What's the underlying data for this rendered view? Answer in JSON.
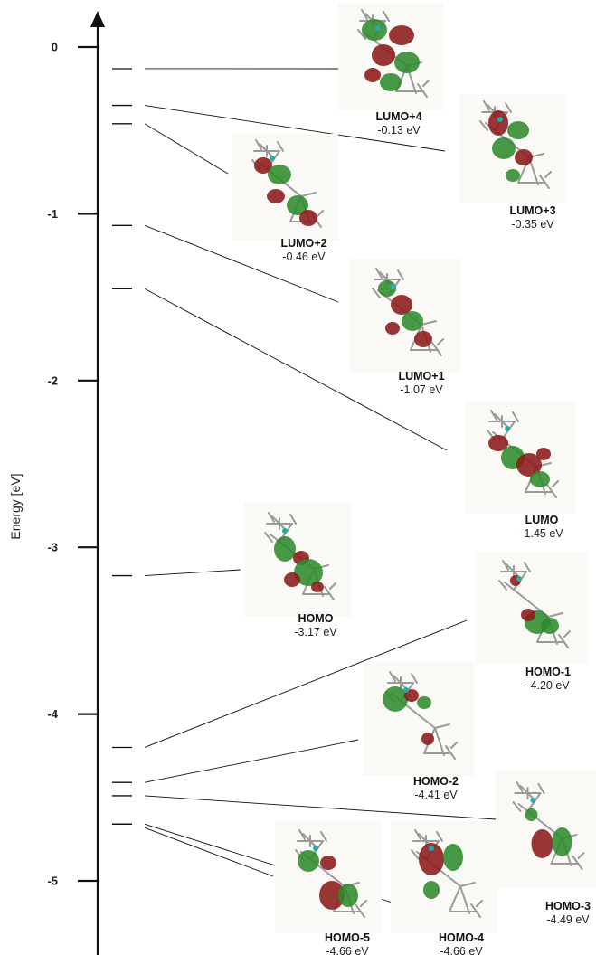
{
  "axis": {
    "label": "Energy [eV]",
    "ticks": [
      "0",
      "-1",
      "-2",
      "-3",
      "-4",
      "-5"
    ],
    "range": [
      0.3,
      -5.47
    ]
  },
  "colors": {
    "lobe_red": "#8b1a1a",
    "lobe_green": "#2e8b2e",
    "bond": "#9a9a9a",
    "line": "#111111"
  },
  "orbitals": [
    {
      "id": "lumo4",
      "name": "LUMO+4",
      "energy_label": "-0.13 eV",
      "energy": -0.13,
      "icon": "orbital-isosurface"
    },
    {
      "id": "lumo3",
      "name": "LUMO+3",
      "energy_label": "-0.35 eV",
      "energy": -0.35,
      "icon": "orbital-isosurface"
    },
    {
      "id": "lumo2",
      "name": "LUMO+2",
      "energy_label": "-0.46 eV",
      "energy": -0.46,
      "icon": "orbital-isosurface"
    },
    {
      "id": "lumo1",
      "name": "LUMO+1",
      "energy_label": "-1.07 eV",
      "energy": -1.07,
      "icon": "orbital-isosurface"
    },
    {
      "id": "lumo",
      "name": "LUMO",
      "energy_label": "-1.45 eV",
      "energy": -1.45,
      "icon": "orbital-isosurface"
    },
    {
      "id": "homo",
      "name": "HOMO",
      "energy_label": "-3.17 eV",
      "energy": -3.17,
      "icon": "orbital-isosurface"
    },
    {
      "id": "homo1",
      "name": "HOMO-1",
      "energy_label": "-4.20 eV",
      "energy": -4.2,
      "icon": "orbital-isosurface"
    },
    {
      "id": "homo2",
      "name": "HOMO-2",
      "energy_label": "-4.41 eV",
      "energy": -4.41,
      "icon": "orbital-isosurface"
    },
    {
      "id": "homo3",
      "name": "HOMO-3",
      "energy_label": "-4.49 eV",
      "energy": -4.49,
      "icon": "orbital-isosurface"
    },
    {
      "id": "homo5",
      "name": "HOMO-5",
      "energy_label": "-4.66 eV",
      "energy": -4.66,
      "icon": "orbital-isosurface"
    },
    {
      "id": "homo4",
      "name": "HOMO-4",
      "energy_label": "-4.66 eV",
      "energy": -4.66,
      "icon": "orbital-isosurface"
    }
  ]
}
